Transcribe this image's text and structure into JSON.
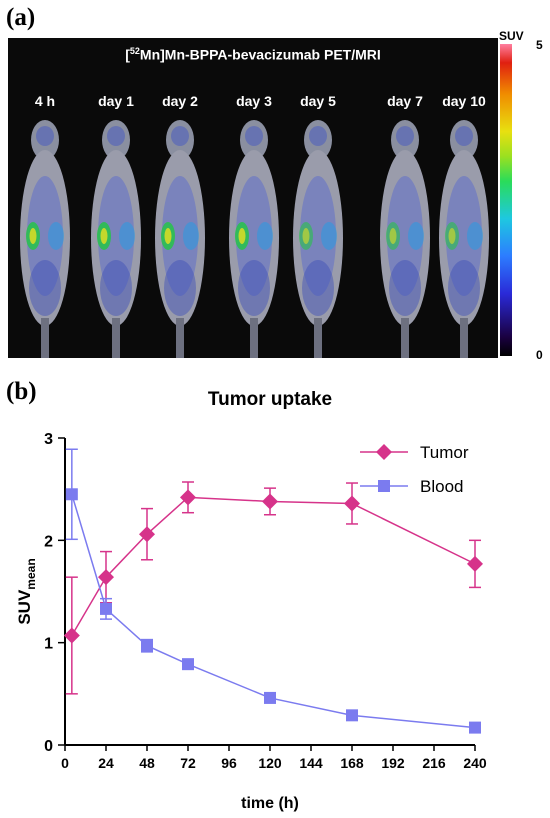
{
  "panel_a": {
    "label": "(a)",
    "title_pre": "[",
    "title_sup": "52",
    "title_post": "Mn]Mn-BPPA-bevacizumab PET/MRI",
    "timepoints": [
      "4 h",
      "day 1",
      "day 2",
      "day 3",
      "day 5",
      "day 7",
      "day 10"
    ],
    "colorbar": {
      "label": "SUV",
      "max_label": "5",
      "min_label": "0"
    }
  },
  "panel_b": {
    "label": "(b)"
  },
  "chart_data": {
    "type": "line",
    "title": "Tumor uptake",
    "xlabel": "time (h)",
    "ylabel_main": "SUV",
    "ylabel_sub": "mean",
    "xlim": [
      0,
      240
    ],
    "ylim": [
      0,
      3
    ],
    "xticks": [
      0,
      24,
      48,
      72,
      96,
      120,
      144,
      168,
      192,
      216,
      240
    ],
    "yticks": [
      0,
      1,
      2,
      3
    ],
    "grid": false,
    "legend_position": "top-right",
    "series": [
      {
        "name": "Tumor",
        "marker": "diamond",
        "color": "#d6338a",
        "x": [
          4,
          24,
          48,
          72,
          120,
          168,
          240
        ],
        "y": [
          1.07,
          1.64,
          2.06,
          2.42,
          2.38,
          2.36,
          1.77
        ],
        "err": [
          0.57,
          0.25,
          0.25,
          0.15,
          0.13,
          0.2,
          0.23
        ]
      },
      {
        "name": "Blood",
        "marker": "square",
        "color": "#7b7bef",
        "x": [
          4,
          24,
          48,
          72,
          120,
          168,
          240
        ],
        "y": [
          2.45,
          1.33,
          0.97,
          0.79,
          0.46,
          0.29,
          0.17
        ],
        "err": [
          0.44,
          0.1,
          0.06,
          0.04,
          0.03,
          0.02,
          0.02
        ]
      }
    ]
  }
}
